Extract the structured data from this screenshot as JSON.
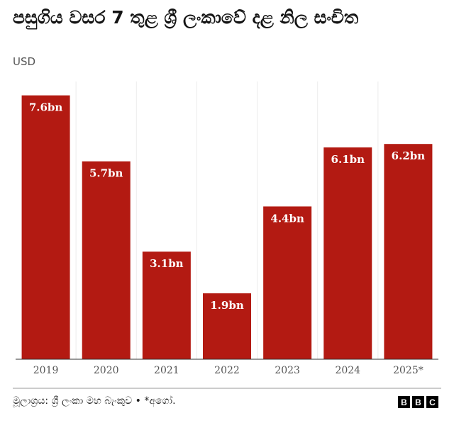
{
  "chart_data": {
    "type": "bar",
    "title": "පසුගිය වසර 7 තුළ ශ්‍රී ලංකාවේ දළ නිල සංචිත",
    "subtitle": "USD",
    "categories": [
      "2019",
      "2020",
      "2021",
      "2022",
      "2023",
      "2024",
      "2025*"
    ],
    "values": [
      7.6,
      5.7,
      3.1,
      1.9,
      4.4,
      6.1,
      6.2
    ],
    "value_labels": [
      "7.6bn",
      "5.7bn",
      "3.1bn",
      "1.9bn",
      "4.4bn",
      "6.1bn",
      "6.2bn"
    ],
    "color": "#b31a12",
    "ylim": [
      0,
      8
    ],
    "source": "මූලාශ්‍රය: ශ්‍රී ලංකා මහ බැංකුව • *අගෝ.",
    "logo": [
      "B",
      "B",
      "C"
    ]
  }
}
